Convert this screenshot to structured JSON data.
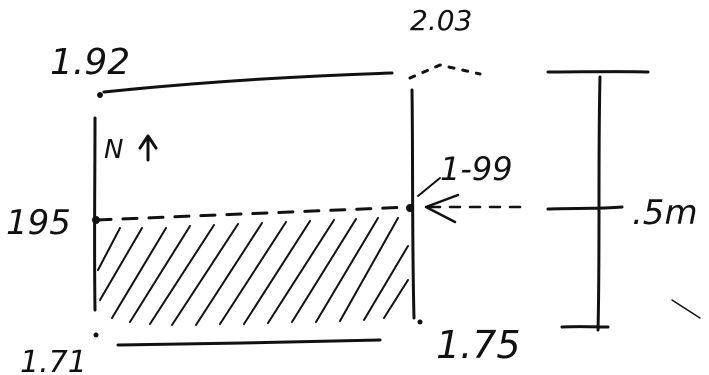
{
  "labels": {
    "top_left": "1.92",
    "top_right": "2.03",
    "mid_left": "195",
    "mid_right": "1-99",
    "bottom_left": "1.71",
    "bottom_right": "1.75",
    "north": "N",
    "scale": ".5m"
  }
}
